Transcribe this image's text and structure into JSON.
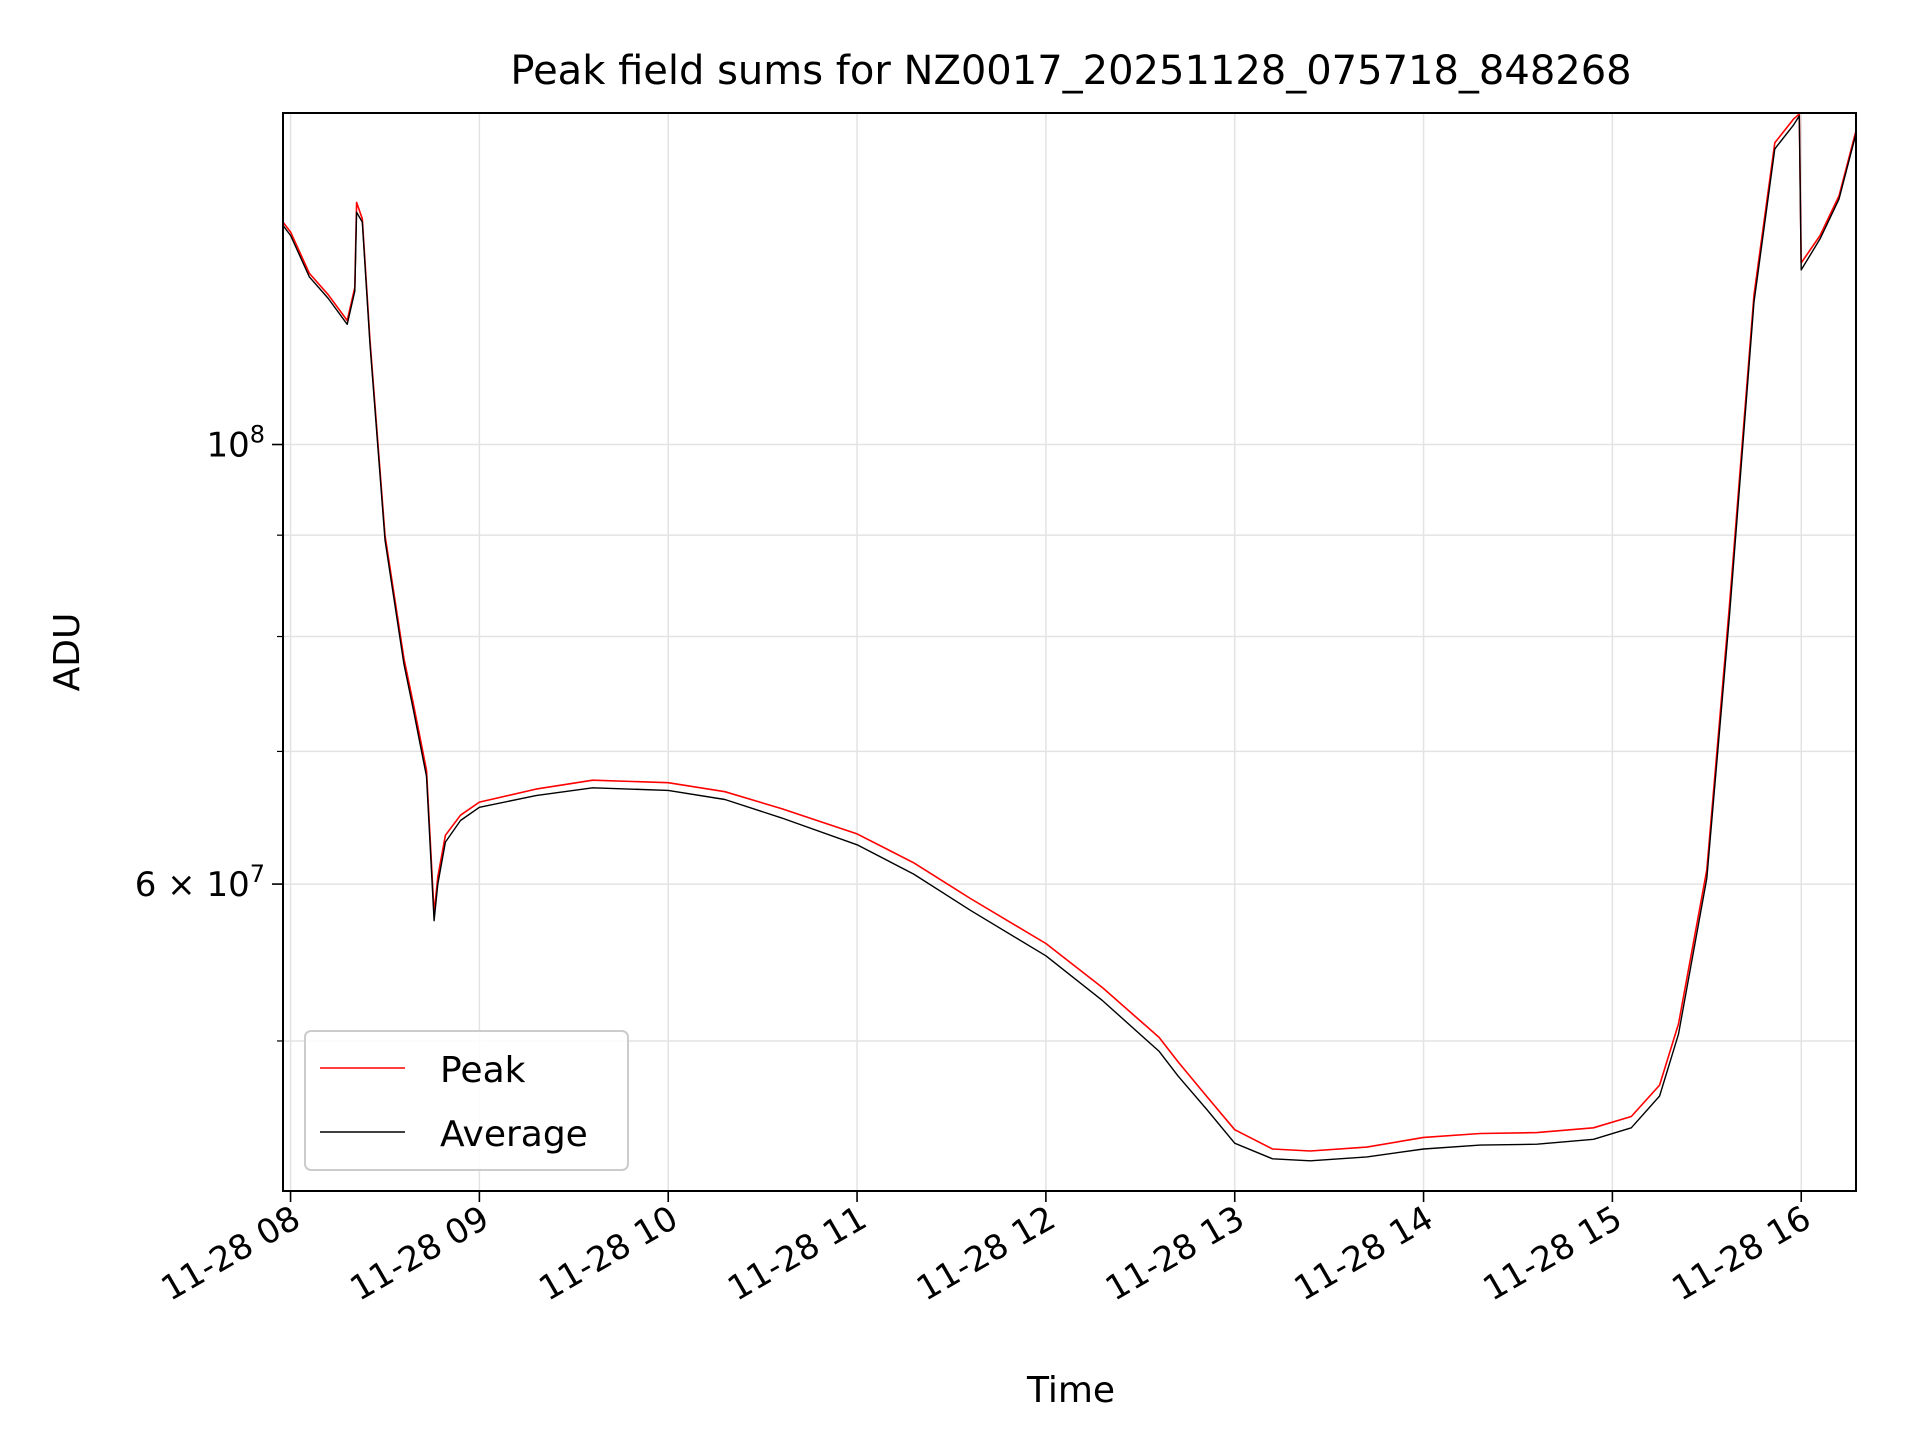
{
  "chart_data": {
    "type": "line",
    "title": "Peak field sums for NZ0017_20251128_075718_848268",
    "xlabel": "Time",
    "ylabel": "ADU",
    "yscale": "log",
    "grid": true,
    "legend_position": "bottom-left",
    "x_units": "hours of day (2025-11-28)",
    "xlim": [
      7.96,
      16.29
    ],
    "ylim": [
      42000000,
      147000000
    ],
    "x_ticks": [
      {
        "value": 8,
        "label": "11-28 08"
      },
      {
        "value": 9,
        "label": "11-28 09"
      },
      {
        "value": 10,
        "label": "11-28 10"
      },
      {
        "value": 11,
        "label": "11-28 11"
      },
      {
        "value": 12,
        "label": "11-28 12"
      },
      {
        "value": 13,
        "label": "11-28 13"
      },
      {
        "value": 14,
        "label": "11-28 14"
      },
      {
        "value": 15,
        "label": "11-28 15"
      },
      {
        "value": 16,
        "label": "11-28 16"
      }
    ],
    "y_major_ticks": [
      {
        "value": 100000000,
        "base": "10",
        "exp": "8"
      },
      {
        "value": 60000000,
        "base": "6 × 10",
        "exp": "7"
      }
    ],
    "y_minor_ticks": [
      50000000,
      70000000,
      80000000,
      90000000
    ],
    "series": [
      {
        "name": "Peak",
        "color": "#ff0000",
        "x": [
          7.96,
          8.0,
          8.1,
          8.2,
          8.3,
          8.34,
          8.35,
          8.38,
          8.42,
          8.5,
          8.6,
          8.65,
          8.72,
          8.76,
          8.78,
          8.82,
          8.9,
          9.0,
          9.3,
          9.6,
          10.0,
          10.3,
          10.6,
          11.0,
          11.3,
          11.6,
          12.0,
          12.3,
          12.6,
          12.7,
          12.85,
          13.0,
          13.2,
          13.4,
          13.7,
          14.0,
          14.3,
          14.6,
          14.9,
          15.1,
          15.25,
          15.35,
          15.5,
          15.62,
          15.75,
          15.86,
          15.96,
          15.99,
          16.0,
          16.1,
          16.2,
          16.29
        ],
        "y": [
          129500000,
          128000000,
          122000000,
          119000000,
          115500000,
          120000000,
          132500000,
          130000000,
          113000000,
          90000000,
          78000000,
          74000000,
          68500000,
          58000000,
          60500000,
          63500000,
          65000000,
          66000000,
          67000000,
          67700000,
          67500000,
          66800000,
          65500000,
          63600000,
          61500000,
          59000000,
          56000000,
          53200000,
          50200000,
          48800000,
          46900000,
          45100000,
          44100000,
          44000000,
          44200000,
          44700000,
          44900000,
          44950000,
          45200000,
          45800000,
          47500000,
          51000000,
          61000000,
          83000000,
          119000000,
          142000000,
          146000000,
          147000000,
          123500000,
          127500000,
          133500000,
          144000000
        ]
      },
      {
        "name": "Average",
        "color": "#000000",
        "x": [
          7.96,
          8.0,
          8.1,
          8.2,
          8.3,
          8.34,
          8.35,
          8.38,
          8.42,
          8.5,
          8.6,
          8.65,
          8.72,
          8.76,
          8.78,
          8.82,
          8.9,
          9.0,
          9.3,
          9.6,
          10.0,
          10.3,
          10.6,
          11.0,
          11.3,
          11.6,
          12.0,
          12.3,
          12.6,
          12.7,
          12.85,
          13.0,
          13.2,
          13.4,
          13.7,
          14.0,
          14.3,
          14.6,
          14.9,
          15.1,
          15.25,
          15.35,
          15.5,
          15.62,
          15.75,
          15.86,
          15.96,
          15.99,
          16.0,
          16.1,
          16.2,
          16.29
        ],
        "y": [
          129000000,
          127500000,
          121500000,
          118500000,
          115000000,
          119500000,
          131000000,
          129500000,
          112500000,
          89500000,
          77500000,
          73500000,
          68000000,
          57500000,
          60000000,
          63000000,
          64600000,
          65600000,
          66500000,
          67100000,
          66900000,
          66200000,
          64800000,
          62800000,
          60700000,
          58200000,
          55200000,
          52400000,
          49400000,
          48000000,
          46200000,
          44400000,
          43600000,
          43500000,
          43700000,
          44100000,
          44300000,
          44350000,
          44600000,
          45200000,
          46900000,
          50400000,
          60400000,
          82000000,
          118000000,
          141000000,
          145000000,
          146500000,
          122500000,
          127000000,
          133000000,
          143500000
        ]
      }
    ]
  }
}
